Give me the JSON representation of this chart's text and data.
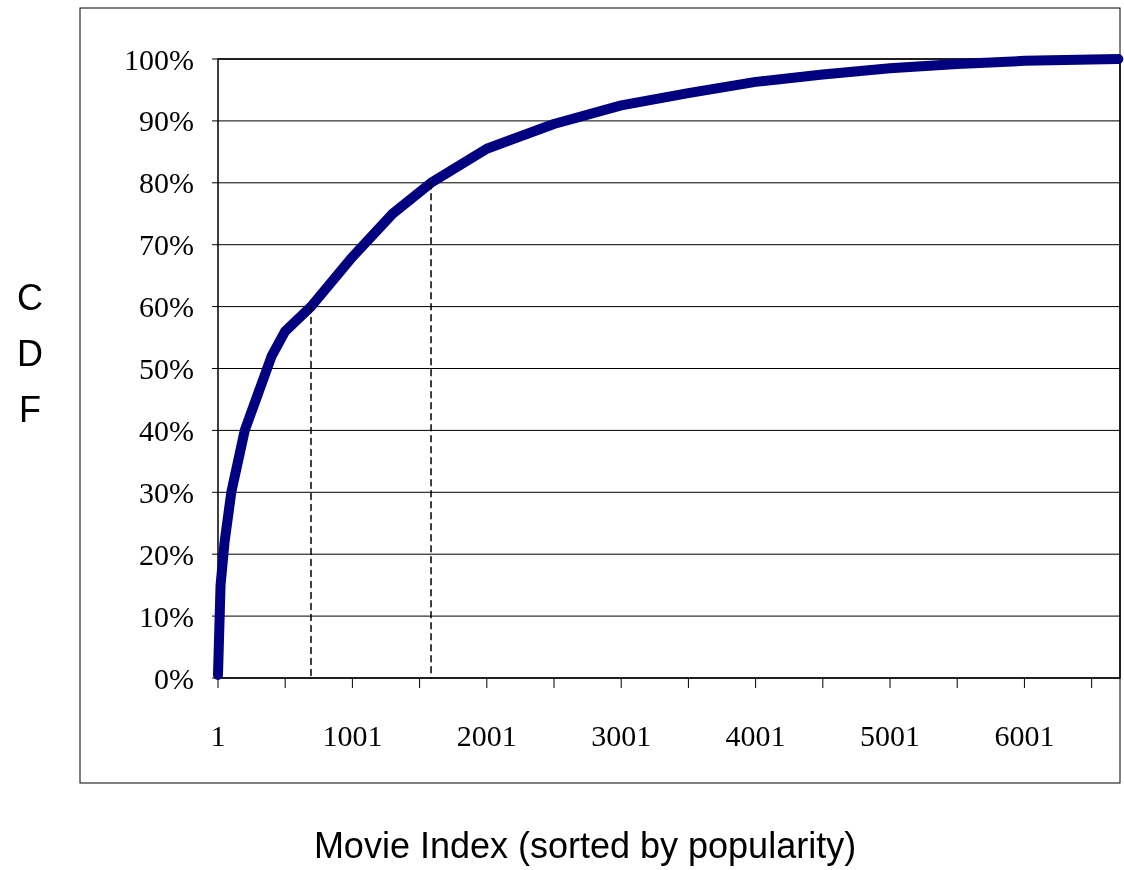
{
  "chart_data": {
    "type": "line",
    "xlabel": "Movie Index (sorted by popularity)",
    "ylabel": "CDF",
    "xlim": [
      1,
      6712
    ],
    "ylim": [
      0,
      100
    ],
    "xticks": [
      1,
      {
        "value": 501,
        "label": null
      },
      1001,
      {
        "value": 1501,
        "label": null
      },
      2001,
      {
        "value": 2501,
        "label": null
      },
      3001,
      {
        "value": 3501,
        "label": null
      },
      4001,
      {
        "value": 4501,
        "label": null
      },
      5001,
      {
        "value": 5501,
        "label": null
      },
      6001,
      {
        "value": 6501,
        "label": null
      }
    ],
    "yticks": [
      {
        "value": 0,
        "label": "0%"
      },
      {
        "value": 10,
        "label": "10%"
      },
      {
        "value": 20,
        "label": "20%"
      },
      {
        "value": 30,
        "label": "30%"
      },
      {
        "value": 40,
        "label": "40%"
      },
      {
        "value": 50,
        "label": "50%"
      },
      {
        "value": 60,
        "label": "60%"
      },
      {
        "value": 70,
        "label": "70%"
      },
      {
        "value": 80,
        "label": "80%"
      },
      {
        "value": 90,
        "label": "90%"
      },
      {
        "value": 100,
        "label": "100%"
      }
    ],
    "grid": "y",
    "marker": "none",
    "series": [
      {
        "color": "#000080",
        "line_style": "solid",
        "x": [
          1,
          20,
          50,
          100,
          200,
          300,
          400,
          500,
          693,
          1000,
          1300,
          1586,
          2001,
          2500,
          3001,
          3500,
          4001,
          4500,
          5001,
          5500,
          6001,
          6700
        ],
        "values": [
          0.5,
          15,
          22,
          30,
          40,
          46,
          52,
          56,
          60,
          68,
          75,
          80,
          85.5,
          89.5,
          92.5,
          94.5,
          96.3,
          97.5,
          98.5,
          99.2,
          99.7,
          100
        ]
      },
      {
        "color": "#000000",
        "line_style": "dashed",
        "x": [
          693,
          693
        ],
        "values": [
          0,
          60
        ]
      },
      {
        "color": "#000000",
        "line_style": "dashed",
        "x": [
          1586,
          1586
        ],
        "values": [
          0,
          80
        ]
      }
    ]
  }
}
